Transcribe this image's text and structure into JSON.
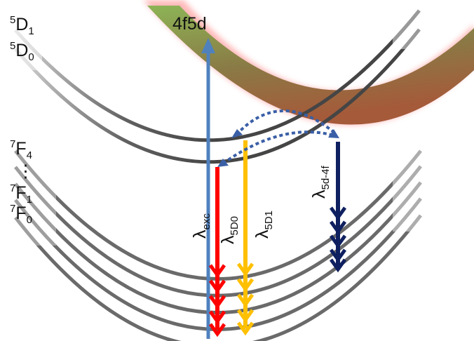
{
  "labels": {
    "d1": {
      "sup": "5",
      "main": "D",
      "sub": "1"
    },
    "d0": {
      "sup": "5",
      "main": "D",
      "sub": "0"
    },
    "f4": {
      "sup": "7",
      "main": "F",
      "sub": "4"
    },
    "dots": "⋮",
    "f1": {
      "sup": "7",
      "main": "F",
      "sub": "1"
    },
    "f0": {
      "sup": "7",
      "main": "F",
      "sub": "0"
    },
    "band": "4f5d",
    "exc": {
      "main": "λ",
      "sub": "exc"
    },
    "d0em": {
      "main": "λ",
      "sub": "5D0"
    },
    "d1em": {
      "main": "λ",
      "sub": "5D1"
    },
    "fdem": {
      "main": "λ",
      "sub": "5d-4f"
    }
  },
  "colors": {
    "excitation": "#4f81bd",
    "emission_5D0": "#ff0000",
    "emission_5D1": "#ffc000",
    "emission_5d4f": "#0f2060",
    "transfer": "#3a5fa6",
    "band_green": "#7fa54a",
    "band_brown": "#9b5a3c",
    "band_glow": "#ff9999",
    "curves": "#555555"
  }
}
